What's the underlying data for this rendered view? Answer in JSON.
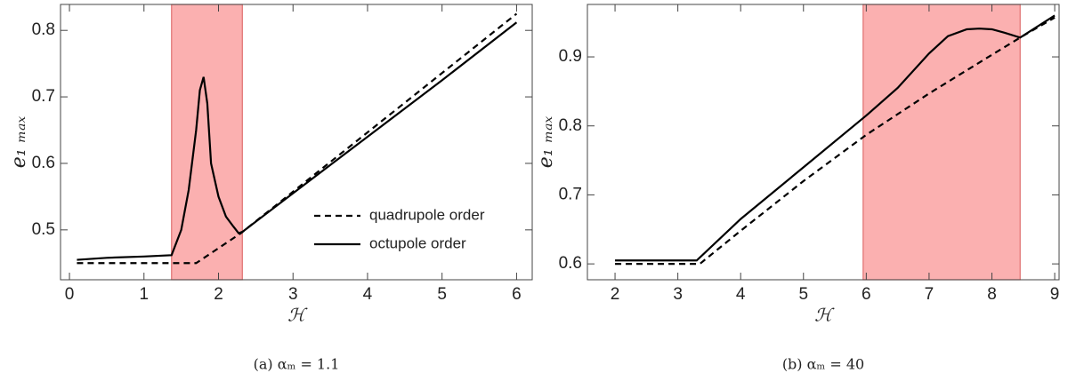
{
  "chart_data": [
    {
      "type": "line",
      "xlabel": "ℋ",
      "ylabel": "e₁ ₘₐₓ",
      "caption": "(a)  αₘ = 1.1",
      "xlim": [
        -0.12,
        6.21
      ],
      "ylim": [
        0.425,
        0.839
      ],
      "xticks": [
        0,
        1,
        2,
        3,
        4,
        5,
        6
      ],
      "yticks": [
        0.5,
        0.6,
        0.7,
        0.8
      ],
      "shade": [
        1.37,
        2.32
      ],
      "shade_color": "#fbb0b0",
      "legend": "lower right",
      "series": [
        {
          "name": "quadrupole order",
          "color": "#000000",
          "linestyle": "dashed",
          "x": [
            0.1,
            1.7,
            2.3,
            6.0
          ],
          "values": [
            0.45,
            0.45,
            0.495,
            0.825
          ]
        },
        {
          "name": "octupole order",
          "color": "#000000",
          "linestyle": "solid",
          "x": [
            0.1,
            0.5,
            1.0,
            1.37,
            1.5,
            1.6,
            1.7,
            1.75,
            1.8,
            1.85,
            1.9,
            2.0,
            2.1,
            2.2,
            2.27,
            2.32,
            3.0,
            4.0,
            5.0,
            6.0
          ],
          "values": [
            0.455,
            0.458,
            0.46,
            0.462,
            0.5,
            0.56,
            0.65,
            0.71,
            0.73,
            0.69,
            0.6,
            0.55,
            0.52,
            0.505,
            0.495,
            0.497,
            0.555,
            0.64,
            0.725,
            0.812
          ]
        }
      ]
    },
    {
      "type": "line",
      "xlabel": "ℋ",
      "ylabel": "e₁ ₘₐₓ",
      "caption": "(b)  αₘ = 40",
      "xlim": [
        1.56,
        9.07
      ],
      "ylim": [
        0.577,
        0.976
      ],
      "xticks": [
        2,
        3,
        4,
        5,
        6,
        7,
        8,
        9
      ],
      "yticks": [
        0.6,
        0.7,
        0.8,
        0.9
      ],
      "shade": [
        5.95,
        8.45
      ],
      "shade_color": "#fbb0b0",
      "series": [
        {
          "color": "#000000",
          "linestyle": "dashed",
          "x": [
            2,
            3.35,
            4,
            5,
            6,
            7,
            8,
            8.45,
            9
          ],
          "values": [
            0.6,
            0.6,
            0.648,
            0.72,
            0.787,
            0.847,
            0.903,
            0.928,
            0.957
          ]
        },
        {
          "color": "#000000",
          "linestyle": "solid",
          "x": [
            2,
            3.3,
            4,
            5,
            6,
            6.5,
            7,
            7.3,
            7.6,
            7.8,
            8.0,
            8.2,
            8.45,
            9
          ],
          "values": [
            0.605,
            0.605,
            0.665,
            0.74,
            0.815,
            0.855,
            0.905,
            0.93,
            0.94,
            0.941,
            0.94,
            0.935,
            0.928,
            0.96
          ]
        }
      ]
    }
  ]
}
